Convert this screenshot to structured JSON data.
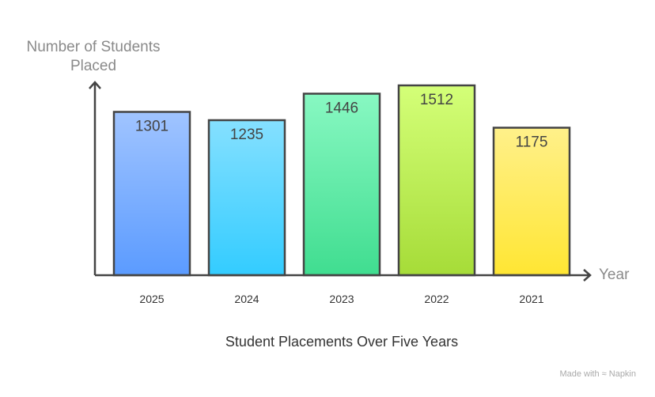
{
  "chart_data": {
    "type": "bar",
    "title": "Student Placements Over Five Years",
    "ylabel": "Number of Students Placed",
    "xlabel": "Year",
    "categories": [
      "2025",
      "2024",
      "2023",
      "2022",
      "2021"
    ],
    "values": [
      1301,
      1235,
      1446,
      1512,
      1175
    ],
    "ylim": [
      0,
      1550
    ],
    "grid": false,
    "colors": [
      [
        "#a0c4ff",
        "#5b9bff"
      ],
      [
        "#85e0ff",
        "#33ccff"
      ],
      [
        "#88f8c2",
        "#40dd90"
      ],
      [
        "#d4ff78",
        "#a6dc38"
      ],
      [
        "#fff08a",
        "#ffe633"
      ]
    ]
  },
  "footer": {
    "brand": "Made with ≈ Napkin"
  }
}
